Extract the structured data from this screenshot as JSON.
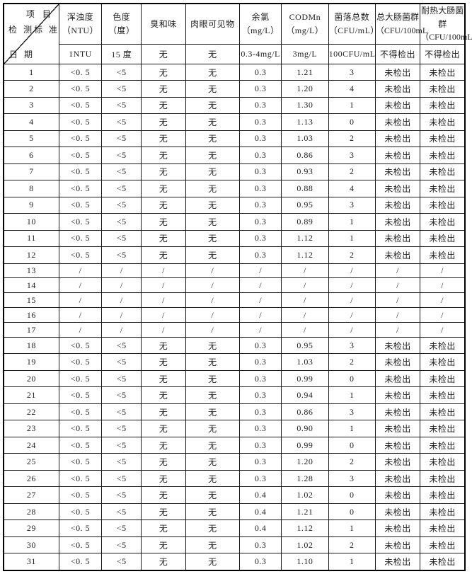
{
  "page": {
    "background": "#ffffff",
    "grid_color": "#1b1b1b"
  },
  "table": {
    "corner": {
      "project_label": "项 目",
      "inspect_label": "检 测",
      "standard_label": "标 准",
      "date_label": "日 期"
    },
    "columns": [
      {
        "key": "turbidity",
        "name": "浑浊度",
        "unit": "（NTU）",
        "standard": "1NTU"
      },
      {
        "key": "chroma",
        "name": "色度",
        "unit": "（度）",
        "standard": "15 度"
      },
      {
        "key": "odor-taste",
        "name": "臭和味",
        "unit": "",
        "standard": "无"
      },
      {
        "key": "visible-matter",
        "name": "肉眼可见物",
        "unit": "",
        "standard": "无"
      },
      {
        "key": "residual-chlorine",
        "name": "余氯",
        "unit": "（mg/L）",
        "standard": "0.3-4mg/L"
      },
      {
        "key": "codmn",
        "name": "CODMn",
        "unit": "（mg/L）",
        "standard": "3mg/L"
      },
      {
        "key": "colony-count",
        "name": "菌落总数",
        "unit": "（CFU/mL）",
        "standard": "100CFU/mL"
      },
      {
        "key": "total-coliform",
        "name": "总大肠菌群",
        "unit": "（CFU/100mL",
        "standard": "不得检出"
      },
      {
        "key": "thermotolerant-coliform",
        "name": "耐热大肠菌",
        "unit": "群（CFU/100mL",
        "standard": "不得检出"
      }
    ],
    "rows": [
      {
        "date": "1",
        "values": [
          "<0. 5",
          "<5",
          "无",
          "无",
          "0.3",
          "1.21",
          "3",
          "未检出",
          "未检出"
        ]
      },
      {
        "date": "2",
        "values": [
          "<0. 5",
          "<5",
          "无",
          "无",
          "0.3",
          "1.20",
          "4",
          "未检出",
          "未检出"
        ]
      },
      {
        "date": "3",
        "values": [
          "<0. 5",
          "<5",
          "无",
          "无",
          "0.3",
          "1.30",
          "1",
          "未检出",
          "未检出"
        ]
      },
      {
        "date": "4",
        "values": [
          "<0. 5",
          "<5",
          "无",
          "无",
          "0.3",
          "1.13",
          "0",
          "未检出",
          "未检出"
        ]
      },
      {
        "date": "5",
        "values": [
          "<0. 5",
          "<5",
          "无",
          "无",
          "0.3",
          "1.03",
          "2",
          "未检出",
          "未检出"
        ]
      },
      {
        "date": "6",
        "values": [
          "<0. 5",
          "<5",
          "无",
          "无",
          "0.3",
          "0.86",
          "3",
          "未检出",
          "未检出"
        ]
      },
      {
        "date": "7",
        "values": [
          "<0. 5",
          "<5",
          "无",
          "无",
          "0.3",
          "0.93",
          "2",
          "未检出",
          "未检出"
        ]
      },
      {
        "date": "8",
        "values": [
          "<0. 5",
          "<5",
          "无",
          "无",
          "0.3",
          "0.88",
          "4",
          "未检出",
          "未检出"
        ]
      },
      {
        "date": "9",
        "values": [
          "<0. 5",
          "<5",
          "无",
          "无",
          "0.3",
          "0.95",
          "3",
          "未检出",
          "未检出"
        ]
      },
      {
        "date": "10",
        "values": [
          "<0. 5",
          "<5",
          "无",
          "无",
          "0.3",
          "0.89",
          "1",
          "未检出",
          "未检出"
        ]
      },
      {
        "date": "11",
        "values": [
          "<0. 5",
          "<5",
          "无",
          "无",
          "0.3",
          "1.12",
          "1",
          "未检出",
          "未检出"
        ]
      },
      {
        "date": "12",
        "values": [
          "<0. 5",
          "<5",
          "无",
          "无",
          "0.3",
          "1.12",
          "2",
          "未检出",
          "未检出"
        ]
      },
      {
        "date": "13",
        "values": [
          "/",
          "/",
          "/",
          "/",
          "/",
          "/",
          "/",
          "/",
          "/"
        ]
      },
      {
        "date": "14",
        "values": [
          "/",
          "/",
          "/",
          "/",
          "/",
          "/",
          "/",
          "/",
          "/"
        ]
      },
      {
        "date": "15",
        "values": [
          "/",
          "/",
          "/",
          "/",
          "/",
          "/",
          "/",
          "/",
          "/"
        ]
      },
      {
        "date": "16",
        "values": [
          "/",
          "/",
          "/",
          "/",
          "/",
          "/",
          "/",
          "/",
          "/"
        ]
      },
      {
        "date": "17",
        "values": [
          "/",
          "/",
          "/",
          "/",
          "/",
          "/",
          "/",
          "/",
          "/"
        ]
      },
      {
        "date": "18",
        "values": [
          "<0. 5",
          "<5",
          "无",
          "无",
          "0.3",
          "0.95",
          "3",
          "未检出",
          "未检出"
        ]
      },
      {
        "date": "19",
        "values": [
          "<0. 5",
          "<5",
          "无",
          "无",
          "0.3",
          "1.03",
          "2",
          "未检出",
          "未检出"
        ]
      },
      {
        "date": "20",
        "values": [
          "<0. 5",
          "<5",
          "无",
          "无",
          "0.3",
          "0.99",
          "0",
          "未检出",
          "未检出"
        ]
      },
      {
        "date": "21",
        "values": [
          "<0. 5",
          "<5",
          "无",
          "无",
          "0.3",
          "0.94",
          "1",
          "未检出",
          "未检出"
        ]
      },
      {
        "date": "22",
        "values": [
          "<0. 5",
          "<5",
          "无",
          "无",
          "0.3",
          "0.86",
          "3",
          "未检出",
          "未检出"
        ]
      },
      {
        "date": "23",
        "values": [
          "<0. 5",
          "<5",
          "无",
          "无",
          "0.3",
          "0.90",
          "1",
          "未检出",
          "未检出"
        ]
      },
      {
        "date": "24",
        "values": [
          "<0. 5",
          "<5",
          "无",
          "无",
          "0.3",
          "0.99",
          "0",
          "未检出",
          "未检出"
        ]
      },
      {
        "date": "25",
        "values": [
          "<0. 5",
          "<5",
          "无",
          "无",
          "0.3",
          "1.20",
          "2",
          "未检出",
          "未检出"
        ]
      },
      {
        "date": "26",
        "values": [
          "<0. 5",
          "<5",
          "无",
          "无",
          "0.3",
          "1.28",
          "3",
          "未检出",
          "未检出"
        ]
      },
      {
        "date": "27",
        "values": [
          "<0. 5",
          "<5",
          "无",
          "无",
          "0.4",
          "1.02",
          "0",
          "未检出",
          "未检出"
        ]
      },
      {
        "date": "28",
        "values": [
          "<0. 5",
          "<5",
          "无",
          "无",
          "0.4",
          "1.21",
          "0",
          "未检出",
          "未检出"
        ]
      },
      {
        "date": "29",
        "values": [
          "<0. 5",
          "<5",
          "无",
          "无",
          "0.4",
          "1.12",
          "1",
          "未检出",
          "未检出"
        ]
      },
      {
        "date": "30",
        "values": [
          "<0. 5",
          "<5",
          "无",
          "无",
          "0.3",
          "1.02",
          "2",
          "未检出",
          "未检出"
        ]
      },
      {
        "date": "31",
        "values": [
          "<0. 5",
          "<5",
          "无",
          "无",
          "0.3",
          "1.10",
          "1",
          "未检出",
          "未检出"
        ]
      }
    ]
  }
}
